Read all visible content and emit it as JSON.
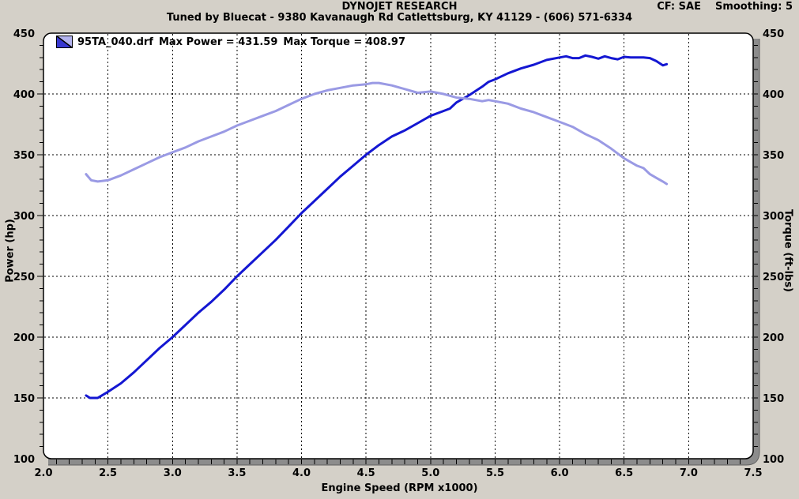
{
  "header": {
    "title": "DYNOJET RESEARCH",
    "subtitle": "Tuned by Bluecat - 9380 Kavanaugh Rd Catlettsburg, KY 41129 - (606) 571-6334",
    "correction_factor": "CF: SAE",
    "smoothing": "Smoothing: 5"
  },
  "legend": {
    "file_name": "95TA_040.drf",
    "max_power_label": "Max Power = 431.59",
    "max_torque_label": "Max Torque = 408.97",
    "swatch": {
      "dark": "#3838d0",
      "light": "#b4b4f0",
      "outline": "#000000"
    }
  },
  "style": {
    "background": "#d4d0c8",
    "plot_background": "#ffffff",
    "grid_color": "#000000",
    "border_color": "#000000",
    "band_color": "#8c8c8c",
    "band_edge_color": "#5f5f5f",
    "text_color": "#000000"
  },
  "chart_data": {
    "type": "line",
    "title": "DYNOJET RESEARCH",
    "xlabel": "Engine Speed (RPM x1000)",
    "ylabel_left": "Power (hp)",
    "ylabel_right": "Torque (ft-lbs)",
    "x_axis": {
      "min": 2.0,
      "max": 7.5,
      "major_step": 0.5,
      "minor_step": 0.1,
      "tick_decimals": 1
    },
    "y_axis": {
      "min": 100,
      "max": 450,
      "major_step": 50,
      "minor_step": 10
    },
    "grid": "dashed-major",
    "legend_position": "top-left",
    "max_power": 431.59,
    "max_torque": 408.97,
    "series": [
      {
        "name": "Power (hp)",
        "axis": "left",
        "color": "#1417d2",
        "width": 3,
        "points": [
          [
            2.33,
            152
          ],
          [
            2.36,
            150
          ],
          [
            2.42,
            150
          ],
          [
            2.5,
            155
          ],
          [
            2.6,
            162
          ],
          [
            2.7,
            171
          ],
          [
            2.8,
            181
          ],
          [
            2.9,
            191
          ],
          [
            3.0,
            200
          ],
          [
            3.1,
            210
          ],
          [
            3.2,
            220
          ],
          [
            3.3,
            229
          ],
          [
            3.4,
            239
          ],
          [
            3.5,
            250
          ],
          [
            3.6,
            260
          ],
          [
            3.7,
            270
          ],
          [
            3.8,
            280
          ],
          [
            3.9,
            291
          ],
          [
            4.0,
            302
          ],
          [
            4.1,
            312
          ],
          [
            4.2,
            322
          ],
          [
            4.3,
            332
          ],
          [
            4.4,
            341
          ],
          [
            4.5,
            350
          ],
          [
            4.6,
            358
          ],
          [
            4.7,
            365
          ],
          [
            4.8,
            370
          ],
          [
            4.9,
            376
          ],
          [
            5.0,
            382
          ],
          [
            5.05,
            384
          ],
          [
            5.1,
            386
          ],
          [
            5.15,
            388
          ],
          [
            5.2,
            393
          ],
          [
            5.3,
            399
          ],
          [
            5.4,
            406
          ],
          [
            5.45,
            410
          ],
          [
            5.5,
            412
          ],
          [
            5.6,
            417
          ],
          [
            5.7,
            421
          ],
          [
            5.8,
            424
          ],
          [
            5.9,
            428
          ],
          [
            6.0,
            430
          ],
          [
            6.05,
            431
          ],
          [
            6.1,
            429.5
          ],
          [
            6.15,
            429.5
          ],
          [
            6.2,
            431.6
          ],
          [
            6.25,
            430.5
          ],
          [
            6.3,
            429
          ],
          [
            6.35,
            431
          ],
          [
            6.4,
            429.5
          ],
          [
            6.45,
            428.5
          ],
          [
            6.5,
            430.5
          ],
          [
            6.55,
            430
          ],
          [
            6.6,
            430
          ],
          [
            6.65,
            430
          ],
          [
            6.7,
            429.5
          ],
          [
            6.75,
            427
          ],
          [
            6.8,
            423.5
          ],
          [
            6.83,
            424.5
          ]
        ]
      },
      {
        "name": "Torque (ft-lbs)",
        "axis": "right",
        "color": "#9a9ae4",
        "width": 3,
        "points": [
          [
            2.33,
            334
          ],
          [
            2.37,
            329
          ],
          [
            2.42,
            328
          ],
          [
            2.5,
            329
          ],
          [
            2.6,
            333
          ],
          [
            2.7,
            338
          ],
          [
            2.8,
            343
          ],
          [
            2.9,
            348
          ],
          [
            3.0,
            352
          ],
          [
            3.1,
            356
          ],
          [
            3.2,
            361
          ],
          [
            3.3,
            365
          ],
          [
            3.4,
            369
          ],
          [
            3.5,
            374
          ],
          [
            3.6,
            378
          ],
          [
            3.7,
            382
          ],
          [
            3.8,
            386
          ],
          [
            3.9,
            391
          ],
          [
            4.0,
            396
          ],
          [
            4.1,
            400
          ],
          [
            4.2,
            403
          ],
          [
            4.3,
            405
          ],
          [
            4.4,
            407
          ],
          [
            4.5,
            408
          ],
          [
            4.55,
            409
          ],
          [
            4.6,
            409
          ],
          [
            4.7,
            407
          ],
          [
            4.8,
            404
          ],
          [
            4.9,
            401
          ],
          [
            5.0,
            402
          ],
          [
            5.1,
            400
          ],
          [
            5.2,
            397
          ],
          [
            5.3,
            396
          ],
          [
            5.4,
            394
          ],
          [
            5.45,
            395
          ],
          [
            5.5,
            394
          ],
          [
            5.6,
            392
          ],
          [
            5.7,
            388
          ],
          [
            5.8,
            385
          ],
          [
            5.9,
            381
          ],
          [
            6.0,
            377
          ],
          [
            6.1,
            373
          ],
          [
            6.2,
            367
          ],
          [
            6.3,
            362
          ],
          [
            6.4,
            355
          ],
          [
            6.5,
            347
          ],
          [
            6.6,
            341
          ],
          [
            6.65,
            339
          ],
          [
            6.7,
            334
          ],
          [
            6.75,
            331
          ],
          [
            6.8,
            328
          ],
          [
            6.83,
            326
          ]
        ]
      }
    ]
  }
}
